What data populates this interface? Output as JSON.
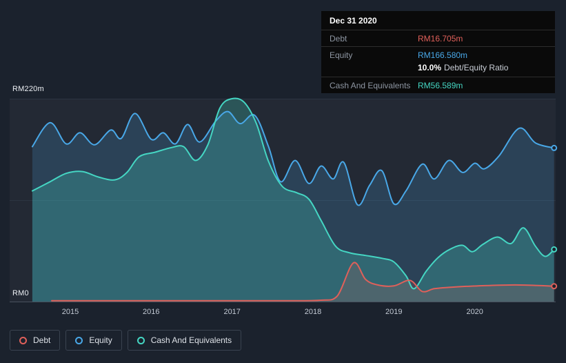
{
  "tooltip": {
    "date": "Dec 31 2020",
    "debt_label": "Debt",
    "debt_value": "RM16.705m",
    "equity_label": "Equity",
    "equity_value": "RM166.580m",
    "ratio_bold": "10.0%",
    "ratio_text": "Debt/Equity Ratio",
    "cash_label": "Cash And Equivalents",
    "cash_value": "RM56.589m"
  },
  "axis": {
    "y_top": "RM220m",
    "y_bottom": "RM0",
    "years": [
      "2015",
      "2016",
      "2017",
      "2018",
      "2019",
      "2020"
    ]
  },
  "legend": {
    "debt": "Debt",
    "equity": "Equity",
    "cash": "Cash And Equivalents"
  },
  "colors": {
    "background": "#1b222d",
    "debt": "#e0605a",
    "equity": "#49a8e8",
    "cash": "#45d6c3"
  },
  "chart_data": {
    "type": "area",
    "title": "Debt to Equity History",
    "xlabel": "",
    "ylabel": "RM (millions)",
    "x_domain": [
      2014.25,
      2021.0
    ],
    "y_domain": [
      0,
      220
    ],
    "x_ticks": [
      2015,
      2016,
      2017,
      2018,
      2019,
      2020
    ],
    "gridlines_y": [
      0,
      110,
      220
    ],
    "legend_position": "bottom-left",
    "series": [
      {
        "name": "Equity",
        "color": "#49a8e8",
        "fill": "rgba(73,168,232,0.20)",
        "points": [
          [
            2014.53,
            168
          ],
          [
            2014.75,
            194
          ],
          [
            2014.95,
            171
          ],
          [
            2015.12,
            183
          ],
          [
            2015.3,
            170
          ],
          [
            2015.5,
            186
          ],
          [
            2015.63,
            177
          ],
          [
            2015.8,
            204
          ],
          [
            2016.0,
            176
          ],
          [
            2016.15,
            183
          ],
          [
            2016.3,
            171
          ],
          [
            2016.45,
            192
          ],
          [
            2016.6,
            173
          ],
          [
            2016.8,
            196
          ],
          [
            2016.95,
            206
          ],
          [
            2017.1,
            193
          ],
          [
            2017.28,
            202
          ],
          [
            2017.45,
            168
          ],
          [
            2017.6,
            130
          ],
          [
            2017.78,
            153
          ],
          [
            2017.95,
            128
          ],
          [
            2018.1,
            147
          ],
          [
            2018.25,
            133
          ],
          [
            2018.38,
            151
          ],
          [
            2018.55,
            105
          ],
          [
            2018.7,
            126
          ],
          [
            2018.85,
            142
          ],
          [
            2019.0,
            106
          ],
          [
            2019.15,
            120
          ],
          [
            2019.35,
            149
          ],
          [
            2019.5,
            133
          ],
          [
            2019.68,
            153
          ],
          [
            2019.85,
            140
          ],
          [
            2020.0,
            150
          ],
          [
            2020.12,
            144
          ],
          [
            2020.3,
            158
          ],
          [
            2020.55,
            188
          ],
          [
            2020.75,
            172
          ],
          [
            2020.98,
            166.58
          ]
        ]
      },
      {
        "name": "Cash And Equivalents",
        "color": "#45d6c3",
        "fill": "rgba(69,214,195,0.26)",
        "points": [
          [
            2014.53,
            120
          ],
          [
            2014.75,
            130
          ],
          [
            2014.95,
            139
          ],
          [
            2015.15,
            141
          ],
          [
            2015.35,
            135
          ],
          [
            2015.55,
            132
          ],
          [
            2015.7,
            140
          ],
          [
            2015.85,
            157
          ],
          [
            2016.05,
            162
          ],
          [
            2016.25,
            167
          ],
          [
            2016.4,
            168
          ],
          [
            2016.55,
            153
          ],
          [
            2016.7,
            170
          ],
          [
            2016.85,
            210
          ],
          [
            2017.0,
            220
          ],
          [
            2017.15,
            216
          ],
          [
            2017.3,
            193
          ],
          [
            2017.45,
            152
          ],
          [
            2017.62,
            125
          ],
          [
            2017.8,
            118
          ],
          [
            2017.95,
            111
          ],
          [
            2018.1,
            88
          ],
          [
            2018.28,
            60
          ],
          [
            2018.45,
            53
          ],
          [
            2018.65,
            50
          ],
          [
            2018.85,
            47
          ],
          [
            2019.0,
            43
          ],
          [
            2019.15,
            28
          ],
          [
            2019.25,
            14
          ],
          [
            2019.4,
            33
          ],
          [
            2019.55,
            48
          ],
          [
            2019.7,
            57
          ],
          [
            2019.85,
            61
          ],
          [
            2019.97,
            54
          ],
          [
            2020.1,
            62
          ],
          [
            2020.28,
            70
          ],
          [
            2020.45,
            63
          ],
          [
            2020.6,
            80
          ],
          [
            2020.75,
            60
          ],
          [
            2020.87,
            49
          ],
          [
            2020.98,
            56.589
          ]
        ]
      },
      {
        "name": "Debt",
        "color": "#e0605a",
        "fill": "rgba(224,96,90,0.16)",
        "points": [
          [
            2014.77,
            1
          ],
          [
            2015.2,
            1
          ],
          [
            2015.7,
            1
          ],
          [
            2016.2,
            1
          ],
          [
            2016.7,
            1
          ],
          [
            2017.2,
            1
          ],
          [
            2017.7,
            1
          ],
          [
            2018.1,
            1.5
          ],
          [
            2018.3,
            6
          ],
          [
            2018.5,
            42
          ],
          [
            2018.65,
            24
          ],
          [
            2018.8,
            18
          ],
          [
            2019.0,
            17
          ],
          [
            2019.2,
            23
          ],
          [
            2019.35,
            11
          ],
          [
            2019.5,
            14
          ],
          [
            2019.7,
            15.5
          ],
          [
            2019.9,
            16.5
          ],
          [
            2020.2,
            17.5
          ],
          [
            2020.5,
            18
          ],
          [
            2020.75,
            17.5
          ],
          [
            2020.98,
            16.705
          ]
        ]
      }
    ]
  }
}
